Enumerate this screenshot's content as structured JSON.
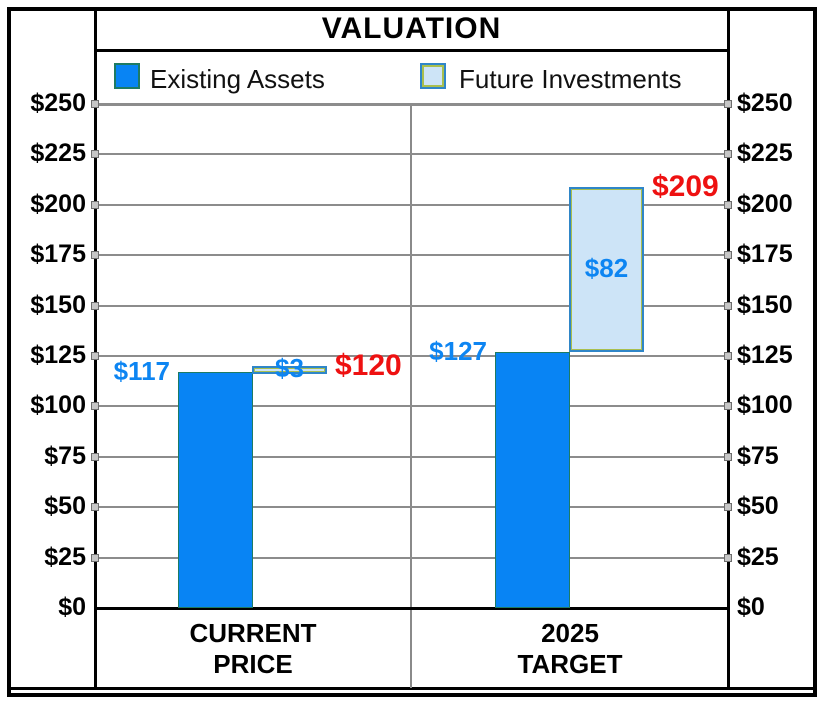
{
  "title": "VALUATION",
  "legend": [
    {
      "label": "Existing Assets"
    },
    {
      "label": "Future Investments"
    }
  ],
  "colors": {
    "existing_fill": "#0884f4",
    "existing_border": "#1e7b63",
    "future_fill": "#cde4f7",
    "future_border": "#2f86c8",
    "future_inner_line": "#a9bf4e",
    "value_label_blue": "#0d85f2",
    "total_label_red": "#ee1111",
    "gridline_gray": "#8c8c8c",
    "frame_black": "#000000"
  },
  "chart_data": {
    "type": "bar",
    "variant": "stacked-waterfall",
    "title": "VALUATION",
    "categories": [
      "CURRENT PRICE",
      "2025 TARGET"
    ],
    "category_lines": [
      [
        "CURRENT",
        "PRICE"
      ],
      [
        "2025",
        "TARGET"
      ]
    ],
    "series": [
      {
        "name": "Existing Assets",
        "values": [
          117,
          127
        ],
        "labels": [
          "$117",
          "$127"
        ]
      },
      {
        "name": "Future Investments",
        "values": [
          3,
          82
        ],
        "labels": [
          "$3",
          "$82"
        ]
      }
    ],
    "totals": {
      "values": [
        120,
        209
      ],
      "labels": [
        "$120",
        "$209"
      ]
    },
    "y_axis": {
      "min": 0,
      "max": 250,
      "step": 25,
      "tick_prefix": "$",
      "sides": [
        "left",
        "right"
      ]
    },
    "grid": true,
    "legend_position": "top"
  }
}
